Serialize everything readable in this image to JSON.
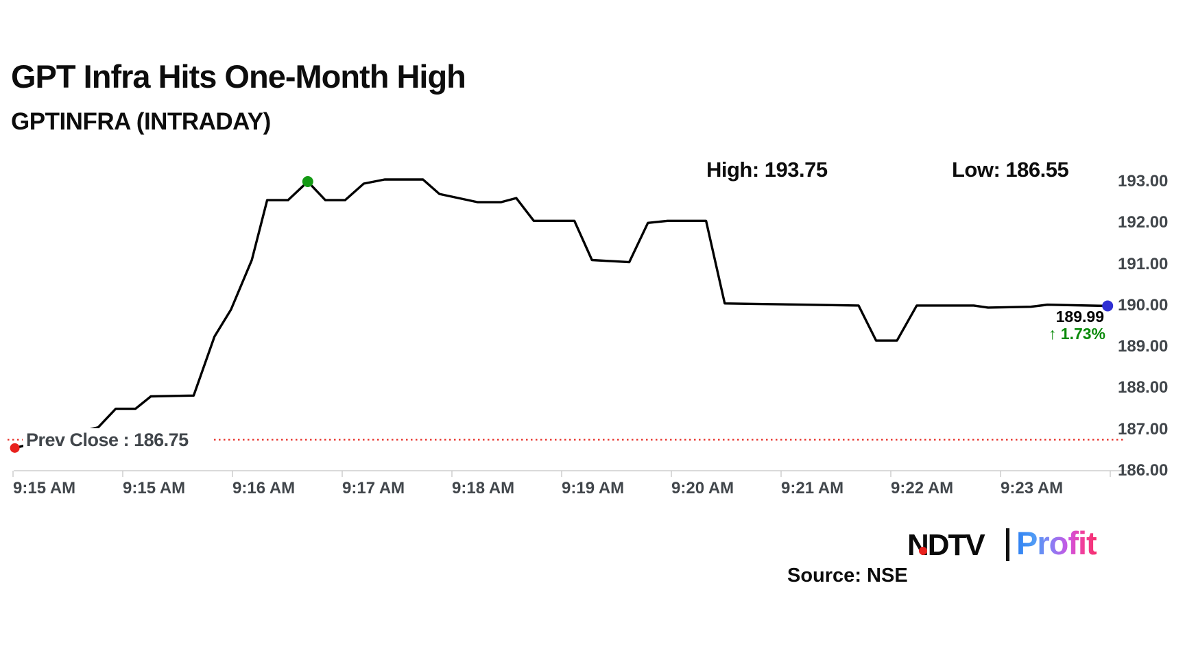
{
  "header": {
    "title": "GPT Infra Hits One-Month High",
    "subtitle": "GPTINFRA (INTRADAY)"
  },
  "chart_data": {
    "type": "line",
    "title": "GPT Infra Hits One-Month High",
    "instrument": "GPTINFRA (INTRADAY)",
    "x_tick_labels": [
      "9:15 AM",
      "9:15 AM",
      "9:16 AM",
      "9:17 AM",
      "9:18 AM",
      "9:19 AM",
      "9:20 AM",
      "9:21 AM",
      "9:22 AM",
      "9:23 AM"
    ],
    "y_tick_labels": [
      "193.00",
      "192.00",
      "191.00",
      "190.00",
      "189.00",
      "188.00",
      "187.00",
      "186.00"
    ],
    "ylim": [
      186,
      193
    ],
    "grid": false,
    "legend": false,
    "high": 193.75,
    "low": 186.55,
    "prev_close": 186.75,
    "last_price": 189.99,
    "change_percent": 1.73,
    "high_marker_index": 11,
    "series": [
      {
        "name": "GPTINFRA intraday price",
        "points": [
          [
            0.001,
            186.55
          ],
          [
            0.077,
            187.05
          ],
          [
            0.093,
            187.5
          ],
          [
            0.111,
            187.5
          ],
          [
            0.125,
            187.8
          ],
          [
            0.164,
            187.82
          ],
          [
            0.183,
            189.25
          ],
          [
            0.198,
            189.9
          ],
          [
            0.217,
            191.1
          ],
          [
            0.231,
            192.55
          ],
          [
            0.25,
            192.55
          ],
          [
            0.268,
            193.0
          ],
          [
            0.284,
            192.55
          ],
          [
            0.302,
            192.55
          ],
          [
            0.319,
            192.95
          ],
          [
            0.338,
            193.05
          ],
          [
            0.373,
            193.05
          ],
          [
            0.388,
            192.7
          ],
          [
            0.423,
            192.5
          ],
          [
            0.444,
            192.5
          ],
          [
            0.458,
            192.6
          ],
          [
            0.474,
            192.05
          ],
          [
            0.511,
            192.05
          ],
          [
            0.527,
            191.1
          ],
          [
            0.561,
            191.05
          ],
          [
            0.578,
            192.0
          ],
          [
            0.596,
            192.05
          ],
          [
            0.631,
            192.05
          ],
          [
            0.648,
            190.05
          ],
          [
            0.77,
            190.0
          ],
          [
            0.786,
            189.15
          ],
          [
            0.805,
            189.15
          ],
          [
            0.823,
            190.0
          ],
          [
            0.875,
            190.0
          ],
          [
            0.888,
            189.95
          ],
          [
            0.927,
            189.97
          ],
          [
            0.942,
            190.02
          ],
          [
            0.997,
            189.99
          ]
        ]
      }
    ],
    "annotations": {
      "high_text": "High: 193.75",
      "low_text": "Low: 186.55",
      "prev_close_text": "Prev Close : 186.75",
      "last_price_text": "189.99",
      "change_text": "↑ 1.73%"
    }
  },
  "colors": {
    "line": "#000000",
    "prev_close_line": "#e8312a",
    "open_dot": "#e8211d",
    "high_dot": "#149a14",
    "last_dot": "#2f2fd3",
    "change_text": "#0a8a0a",
    "axis_line": "#cdcdcd",
    "axis_text": "#41464b"
  },
  "footer": {
    "source": "Source: NSE",
    "logo": {
      "ndtv": "NDTV",
      "profit": "Profit"
    }
  }
}
